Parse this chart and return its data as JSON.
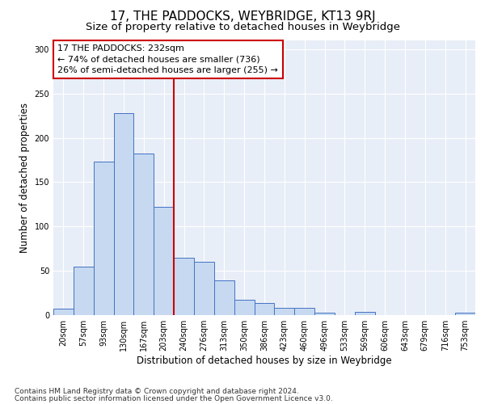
{
  "title": "17, THE PADDOCKS, WEYBRIDGE, KT13 9RJ",
  "subtitle": "Size of property relative to detached houses in Weybridge",
  "xlabel": "Distribution of detached houses by size in Weybridge",
  "ylabel": "Number of detached properties",
  "footnote1": "Contains HM Land Registry data © Crown copyright and database right 2024.",
  "footnote2": "Contains public sector information licensed under the Open Government Licence v3.0.",
  "categories": [
    "20sqm",
    "57sqm",
    "93sqm",
    "130sqm",
    "167sqm",
    "203sqm",
    "240sqm",
    "276sqm",
    "313sqm",
    "350sqm",
    "386sqm",
    "423sqm",
    "460sqm",
    "496sqm",
    "533sqm",
    "569sqm",
    "606sqm",
    "643sqm",
    "679sqm",
    "716sqm",
    "753sqm"
  ],
  "values": [
    7,
    55,
    173,
    228,
    182,
    122,
    65,
    60,
    39,
    17,
    14,
    8,
    8,
    3,
    0,
    4,
    0,
    0,
    0,
    0,
    3
  ],
  "bar_color": "#c6d9f0",
  "bar_edge_color": "#4472c4",
  "vline_color": "#cc0000",
  "annotation_line1": "17 THE PADDOCKS: 232sqm",
  "annotation_line2": "← 74% of detached houses are smaller (736)",
  "annotation_line3": "26% of semi-detached houses are larger (255) →",
  "annotation_box_color": "#cc0000",
  "ylim": [
    0,
    310
  ],
  "yticks": [
    0,
    50,
    100,
    150,
    200,
    250,
    300
  ],
  "background_color": "#e8eef7",
  "grid_color": "#ffffff",
  "title_fontsize": 11,
  "subtitle_fontsize": 9.5,
  "axis_label_fontsize": 8.5,
  "tick_fontsize": 7,
  "annotation_fontsize": 8,
  "footnote_fontsize": 6.5
}
